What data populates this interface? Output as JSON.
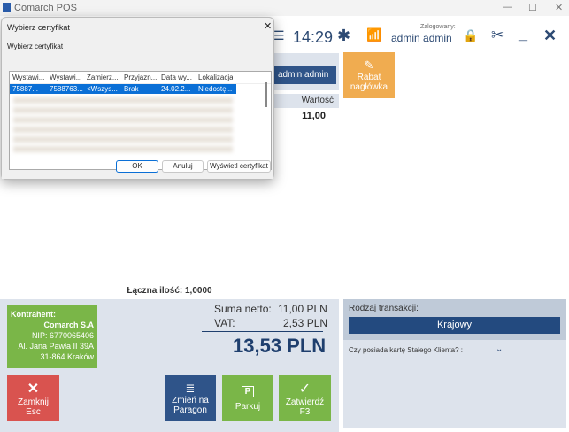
{
  "app": {
    "title": "Comarch POS"
  },
  "header": {
    "time": "14:29",
    "logged_label": "Zalogowany:",
    "user": "admin admin"
  },
  "top_panel": {
    "user_button": "admin admin",
    "rabat_label": "Rabat nagłówka"
  },
  "table": {
    "col_value": "Wartość",
    "row_value": "11,00"
  },
  "summary": {
    "total_qty_label": "Łączna ilość:",
    "total_qty": "1,0000",
    "netto_label": "Suma netto:",
    "netto": "11,00 PLN",
    "vat_label": "VAT:",
    "vat": "2,53 PLN",
    "total": "13,53 PLN"
  },
  "contractor": {
    "label": "Kontrahent:",
    "name": "Comarch S.A",
    "nip": "NIP: 6770065406",
    "address": "Al. Jana Pawła II 39A",
    "city": "31-864 Kraków"
  },
  "actions": {
    "close": "Zamknij",
    "close_key": "Esc",
    "change": "Zmień na",
    "change2": "Paragon",
    "park": "Parkuj",
    "confirm": "Zatwierdź",
    "confirm_key": "F3"
  },
  "transaction": {
    "label": "Rodzaj transakcji:",
    "value": "Krajowy",
    "card_question": "Czy posiada kartę Stałego Klienta? :"
  },
  "dialog": {
    "title": "Wybierz certyfikat",
    "subtitle": "Wybierz certyfikat",
    "columns": [
      "Wystawi...",
      "Wystawi...",
      "Zamierz...",
      "Przyjazn...",
      "Data wy...",
      "Lokalizacja"
    ],
    "selected_row": [
      "75887...",
      "7588763...",
      "<Wszys...",
      "Brak",
      "24.02.2...",
      "Niedostę..."
    ],
    "ok": "OK",
    "cancel": "Anuluj",
    "view": "Wyświetl certyfikat"
  },
  "colors": {
    "green": "#7ab648",
    "red": "#d9534f",
    "navy": "#1f3f6e",
    "orange": "#f0a848"
  }
}
